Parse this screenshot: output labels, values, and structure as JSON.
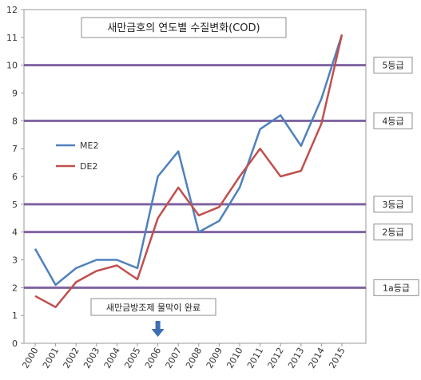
{
  "chart_data": {
    "type": "line",
    "title": "새만금호의 연도별 수질변화(COD)",
    "x": [
      "2000",
      "2001",
      "2002",
      "2003",
      "2004",
      "2005",
      "2006",
      "2007",
      "2008",
      "2009",
      "2010",
      "2011",
      "2012",
      "2013",
      "2014",
      "2015"
    ],
    "series": [
      {
        "name": "ME2",
        "color": "#4f81bd",
        "values": [
          3.4,
          2.1,
          2.7,
          3.0,
          3.0,
          2.7,
          6.0,
          6.9,
          4.0,
          4.4,
          5.6,
          7.7,
          8.2,
          7.1,
          8.8,
          11.1
        ]
      },
      {
        "name": "DE2",
        "color": "#c0504d",
        "values": [
          1.7,
          1.3,
          2.2,
          2.6,
          2.8,
          2.3,
          4.5,
          5.6,
          4.6,
          4.9,
          6.0,
          7.0,
          6.0,
          6.2,
          7.9,
          11.1
        ]
      }
    ],
    "ylim": [
      0,
      12
    ],
    "yticks": [
      0,
      1,
      2,
      3,
      4,
      5,
      6,
      7,
      8,
      9,
      10,
      11,
      12
    ],
    "grid": false,
    "legend": "middle-left",
    "grade_lines": [
      {
        "label": "5등급",
        "value": 10
      },
      {
        "label": "4등급",
        "value": 8
      },
      {
        "label": "3등급",
        "value": 5
      },
      {
        "label": "2등급",
        "value": 4
      },
      {
        "label": "1a등급",
        "value": 2
      }
    ],
    "grade_line_color": "#8064a2",
    "annotation": {
      "text": "새만금방조제 물막이 완료",
      "x": "2006",
      "color": "#3c6fb5"
    }
  }
}
